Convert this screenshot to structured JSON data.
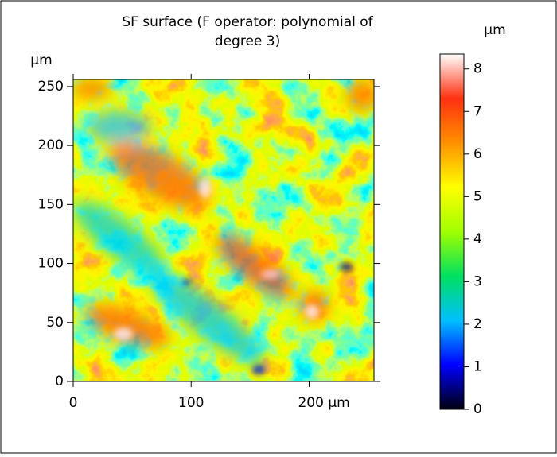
{
  "chart_data": {
    "type": "heatmap",
    "title": [
      "SF surface (F operator: polynomial of",
      "degree 3)"
    ],
    "y_unit_label": "µm",
    "xlim": [
      0,
      255
    ],
    "ylim": [
      0,
      256
    ],
    "xticks": [
      0,
      100,
      {
        "value": 200,
        "label": "200 µm"
      }
    ],
    "yticks": [
      0,
      50,
      100,
      150,
      200,
      250
    ],
    "colorbar": {
      "label": "µm",
      "lim": [
        0,
        8.35
      ],
      "ticks": [
        0,
        1,
        2,
        3,
        4,
        5,
        6,
        7,
        8
      ],
      "colors": [
        "#000010",
        "#0000ff",
        "#00bfff",
        "#00e060",
        "#a0ff00",
        "#ffff00",
        "#ff9000",
        "#ff3010",
        "#ffffff"
      ]
    }
  }
}
